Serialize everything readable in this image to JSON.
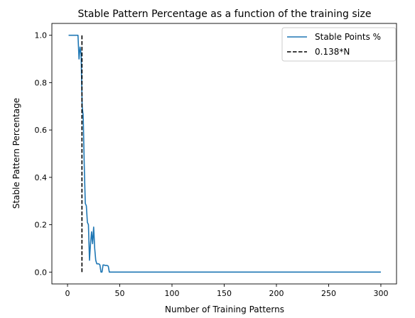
{
  "chart_data": {
    "type": "line",
    "title": "Stable Pattern Percentage as a function of the training size",
    "xlabel": "Number of Training Patterns",
    "ylabel": "Stable Pattern Percentage",
    "xlim": [
      -15,
      315
    ],
    "ylim": [
      -0.05,
      1.05
    ],
    "xticks": [
      0,
      50,
      100,
      150,
      200,
      250,
      300
    ],
    "yticks": [
      0.0,
      0.2,
      0.4,
      0.6,
      0.8,
      1.0
    ],
    "ytick_labels": [
      "0.0",
      "0.2",
      "0.4",
      "0.6",
      "0.8",
      "1.0"
    ],
    "grid": false,
    "legend_position": "top-right",
    "series": [
      {
        "name": "Stable Points %",
        "color": "#1f77b4",
        "style": "solid",
        "x": [
          1,
          2,
          3,
          4,
          5,
          6,
          7,
          8,
          9,
          10,
          11,
          12,
          13,
          14,
          15,
          16,
          17,
          18,
          19,
          20,
          21,
          22,
          23,
          24,
          25,
          26,
          27,
          28,
          29,
          30,
          31,
          32,
          33,
          34,
          35,
          36,
          37,
          38,
          39,
          40,
          41,
          42,
          43,
          44,
          45,
          50,
          100,
          150,
          200,
          250,
          300
        ],
        "y": [
          1.0,
          1.0,
          1.0,
          1.0,
          1.0,
          1.0,
          1.0,
          1.0,
          1.0,
          1.0,
          0.9,
          0.95,
          0.92,
          0.7,
          0.66,
          0.45,
          0.29,
          0.28,
          0.21,
          0.2,
          0.05,
          0.12,
          0.17,
          0.12,
          0.19,
          0.1,
          0.05,
          0.035,
          0.035,
          0.035,
          0.03,
          0.0,
          0.0,
          0.03,
          0.03,
          0.028,
          0.028,
          0.028,
          0.025,
          0.0,
          0.0,
          0.0,
          0.0,
          0.0,
          0.0,
          0.0,
          0.0,
          0.0,
          0.0,
          0.0,
          0.0
        ]
      },
      {
        "name": "0.138*N",
        "color": "#000000",
        "style": "dashed",
        "x": [
          13.8,
          13.8
        ],
        "y": [
          0.0,
          1.0
        ]
      }
    ]
  }
}
